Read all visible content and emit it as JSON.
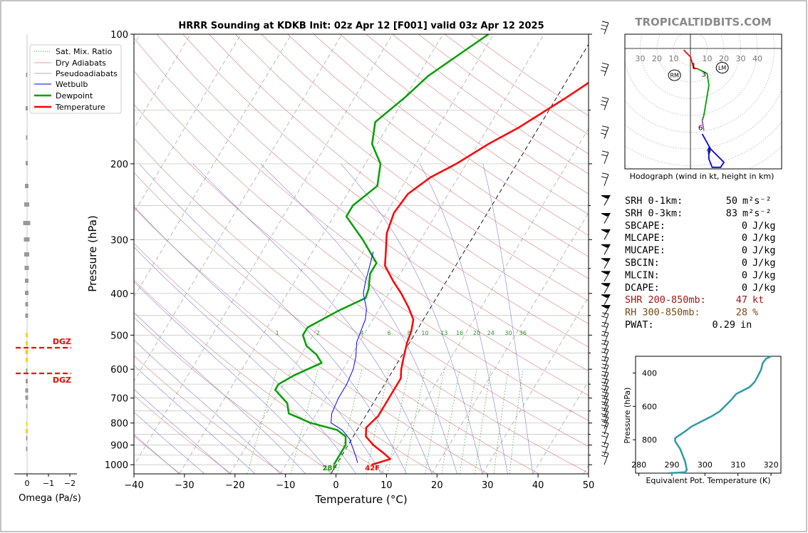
{
  "brand": "TROPICALTIDBITS.COM",
  "colors": {
    "temperature": "#ff0000",
    "dewpoint": "#00a000",
    "wetbulb": "#0000ff",
    "dry_adiabat": "#d08080",
    "pseudo_adiabat": "#8080d0",
    "mixing_ratio": "#2a9a2a",
    "dgz": "#ff0000",
    "theta_e": "#2e9aa6"
  },
  "chart_data": [
    {
      "type": "line",
      "title": "HRRR Sounding at KDKB Init: 02z Apr 12 [F001] valid 03z Apr 12 2025",
      "xlabel": "Temperature (°C)",
      "ylabel": "Pressure (hPa)",
      "xlim": [
        -40,
        50
      ],
      "ylim": [
        1050,
        100
      ],
      "yscale": "log",
      "grid": true,
      "legend_position": "top-left",
      "x_ticks": [
        "−40",
        "−30",
        "−20",
        "−10",
        "0",
        "10",
        "20",
        "30",
        "40",
        "50"
      ],
      "y_ticks": [
        "100",
        "200",
        "300",
        "400",
        "500",
        "600",
        "700",
        "800",
        "900",
        "1000"
      ],
      "legend": [
        "Sat. Mix. Ratio",
        "Dry Adiabats",
        "Pseudoadiabats",
        "Wetbulb",
        "Dewpoint",
        "Temperature"
      ],
      "mixing_ratio_labels": [
        "1",
        "2",
        "4",
        "6",
        "8",
        "10",
        "13",
        "16",
        "20",
        "24",
        "30",
        "36"
      ],
      "surface_labels": {
        "dewpoint": "28F",
        "temperature": "42F"
      },
      "series": [
        {
          "name": "Temperature",
          "points": [
            [
              7,
              1000
            ],
            [
              10,
              970
            ],
            [
              8,
              940
            ],
            [
              5,
              900
            ],
            [
              2.5,
              860
            ],
            [
              1.5,
              820
            ],
            [
              2.5,
              770
            ],
            [
              2.5,
              730
            ],
            [
              2.5,
              700
            ],
            [
              2.5,
              670
            ],
            [
              2.5,
              630
            ],
            [
              1.5,
              600
            ],
            [
              0.5,
              560
            ],
            [
              -0.5,
              520
            ],
            [
              -1,
              490
            ],
            [
              -2,
              460
            ],
            [
              -4.5,
              430
            ],
            [
              -7.5,
              400
            ],
            [
              -10.5,
              375
            ],
            [
              -14,
              345
            ],
            [
              -15.5,
              320
            ],
            [
              -17.5,
              290
            ],
            [
              -18.5,
              260
            ],
            [
              -18,
              235
            ],
            [
              -15.5,
              215
            ],
            [
              -12,
              200
            ],
            [
              -8,
              180
            ],
            [
              -4,
              165
            ],
            [
              -0.5,
              150
            ],
            [
              2,
              140
            ],
            [
              4.5,
              130
            ],
            [
              7,
              118
            ],
            [
              9,
              108
            ],
            [
              10.5,
              100
            ]
          ]
        },
        {
          "name": "Dewpoint",
          "points": [
            [
              -0.5,
              1000
            ],
            [
              -0.5,
              960
            ],
            [
              -0.5,
              900
            ],
            [
              -1.5,
              860
            ],
            [
              -4,
              830
            ],
            [
              -10,
              800
            ],
            [
              -15.5,
              760
            ],
            [
              -17,
              720
            ],
            [
              -21,
              670
            ],
            [
              -21,
              650
            ],
            [
              -19,
              620
            ],
            [
              -15,
              580
            ],
            [
              -17,
              555
            ],
            [
              -20,
              530
            ],
            [
              -22,
              500
            ],
            [
              -22,
              480
            ],
            [
              -18,
              440
            ],
            [
              -14,
              410
            ],
            [
              -14.5,
              390
            ],
            [
              -16,
              360
            ],
            [
              -16,
              340
            ],
            [
              -21.5,
              300
            ],
            [
              -27.5,
              265
            ],
            [
              -27.5,
              250
            ],
            [
              -25,
              225
            ],
            [
              -27,
              200
            ],
            [
              -31,
              180
            ],
            [
              -33,
              160
            ],
            [
              -30,
              140
            ],
            [
              -28,
              125
            ],
            [
              -24,
              110
            ],
            [
              -21,
              100
            ]
          ]
        },
        {
          "name": "Wetbulb",
          "points": [
            [
              4,
              990
            ],
            [
              3,
              960
            ],
            [
              1.5,
              920
            ],
            [
              -0.5,
              870
            ],
            [
              -3,
              830
            ],
            [
              -6,
              800
            ],
            [
              -7,
              760
            ],
            [
              -7.5,
              700
            ],
            [
              -7.5,
              650
            ],
            [
              -8,
              600
            ],
            [
              -9,
              560
            ],
            [
              -10.5,
              520
            ],
            [
              -11,
              490
            ],
            [
              -11.5,
              460
            ],
            [
              -12.5,
              435
            ],
            [
              -15,
              400
            ],
            [
              -16,
              375
            ],
            [
              -17,
              345
            ],
            [
              -18,
              320
            ]
          ]
        }
      ]
    },
    {
      "type": "scatter",
      "title": "Omega (Pa/s)",
      "x_ticks": [
        "0",
        "−1",
        "−2"
      ],
      "annotations": [
        "DGZ",
        "DGZ"
      ]
    },
    {
      "type": "line",
      "title": "Hodograph (wind in kt, height in km)",
      "ring_labels": [
        "30",
        "20",
        "10",
        "10",
        "20",
        "30",
        "40"
      ],
      "height_labels": [
        "1",
        "3",
        "6",
        "9"
      ],
      "markers": [
        "RM",
        "LM"
      ]
    },
    {
      "type": "table",
      "rows": [
        {
          "label": "SRH 0-1km:",
          "value": "50",
          "unit": "m²s⁻²"
        },
        {
          "label": "SRH 0-3km:",
          "value": "83",
          "unit": "m²s⁻²"
        },
        {
          "label": "SBCAPE:",
          "value": "0",
          "unit": "J/kg"
        },
        {
          "label": "MLCAPE:",
          "value": "0",
          "unit": "J/kg"
        },
        {
          "label": "MUCAPE:",
          "value": "0",
          "unit": "J/kg"
        },
        {
          "label": "SBCIN:",
          "value": "0",
          "unit": "J/kg"
        },
        {
          "label": "MLCIN:",
          "value": "0",
          "unit": "J/kg"
        },
        {
          "label": "DCAPE:",
          "value": "0",
          "unit": "J/kg"
        },
        {
          "label": "SHR 200-850mb:",
          "value": "47",
          "unit": "kt"
        },
        {
          "label": "RH 300-850mb:",
          "value": "28",
          "unit": "%"
        },
        {
          "label": "PWAT:",
          "value": "0.29",
          "unit": "in"
        }
      ]
    },
    {
      "type": "line",
      "xlabel": "Equivalent Pot. Temperature (K)",
      "ylabel": "Pressure (hPa)",
      "x_ticks": [
        "280",
        "290",
        "300",
        "310",
        "320"
      ],
      "y_ticks": [
        "400",
        "600",
        "800"
      ],
      "xlim": [
        279,
        323
      ],
      "ylim": [
        1000,
        300
      ],
      "series": [
        {
          "name": "Theta-E",
          "points": [
            [
              289,
              1000
            ],
            [
              294,
              995
            ],
            [
              294.5,
              980
            ],
            [
              294,
              930
            ],
            [
              293,
              880
            ],
            [
              292.5,
              855
            ],
            [
              291,
              810
            ],
            [
              291,
              790
            ],
            [
              294,
              750
            ],
            [
              296,
              720
            ],
            [
              299,
              690
            ],
            [
              302,
              660
            ],
            [
              304.5,
              630
            ],
            [
              306,
              600
            ],
            [
              308,
              560
            ],
            [
              309.5,
              525
            ],
            [
              313.5,
              485
            ],
            [
              315,
              455
            ],
            [
              316,
              420
            ],
            [
              317,
              380
            ],
            [
              317.5,
              340
            ],
            [
              318.5,
              315
            ],
            [
              320,
              300
            ]
          ]
        }
      ]
    }
  ]
}
